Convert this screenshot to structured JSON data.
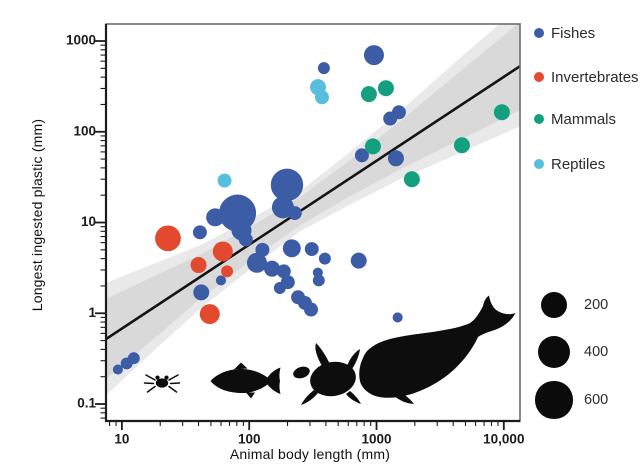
{
  "chart_data": {
    "type": "scatter",
    "title": "",
    "xlabel": "Animal body length (mm)",
    "ylabel": "Longest ingested plastic (mm)",
    "x_scale": "log",
    "y_scale": "log",
    "xlim": [
      7.5,
      13400
    ],
    "ylim": [
      0.065,
      1540
    ],
    "grid": false,
    "x_axis": {
      "tick_labels": [
        "10",
        "100",
        "1000",
        "10,000"
      ],
      "tick_values": [
        10,
        100,
        1000,
        10000
      ]
    },
    "y_axis": {
      "tick_labels": [
        "1000",
        "100",
        "10",
        "1",
        "0.1"
      ],
      "tick_values": [
        1000,
        100,
        10,
        1,
        0.1
      ]
    },
    "legend": [
      {
        "label": "Fishes",
        "color": "#3D5CA6"
      },
      {
        "label": "Invertebrates",
        "color": "#E2492F"
      },
      {
        "label": "Mammals",
        "color": "#14A07E"
      },
      {
        "label": "Reptiles",
        "color": "#58BEDE"
      }
    ],
    "legend_position": "right",
    "size_legend": {
      "labels": [
        "200",
        "400",
        "600"
      ],
      "values": [
        200,
        400,
        600
      ]
    },
    "series": [
      {
        "name": "Fishes",
        "color": "#3D5CA6",
        "points": [
          [
            9.3,
            0.24,
            12
          ],
          [
            10.9,
            0.28,
            20
          ],
          [
            12.4,
            0.32,
            20
          ],
          [
            41,
            7.8,
            32
          ],
          [
            54,
            11.4,
            68
          ],
          [
            81,
            12.7,
            600
          ],
          [
            87,
            8.2,
            94
          ],
          [
            94,
            6.5,
            32
          ],
          [
            184,
            14.7,
            125
          ],
          [
            198,
            26,
            400
          ],
          [
            228,
            12.7,
            32
          ],
          [
            42,
            1.7,
            48
          ],
          [
            60,
            2.3,
            12
          ],
          [
            115,
            3.6,
            94
          ],
          [
            127,
            5.0,
            32
          ],
          [
            151,
            3.1,
            48
          ],
          [
            174,
            1.9,
            20
          ],
          [
            187,
            2.9,
            32
          ],
          [
            201,
            2.2,
            32
          ],
          [
            216,
            5.2,
            68
          ],
          [
            242,
            1.5,
            32
          ],
          [
            274,
            1.3,
            32
          ],
          [
            306,
            1.1,
            32
          ],
          [
            310,
            5.1,
            32
          ],
          [
            346,
            2.8,
            12
          ],
          [
            352,
            2.3,
            20
          ],
          [
            393,
            4.0,
            20
          ],
          [
            725,
            3.8,
            48
          ],
          [
            386,
            503,
            20
          ],
          [
            955,
            700,
            94
          ],
          [
            768,
            55,
            32
          ],
          [
            1420,
            51,
            48
          ],
          [
            1280,
            140,
            32
          ],
          [
            1500,
            164,
            32
          ],
          [
            1466,
            0.9,
            12
          ]
        ]
      },
      {
        "name": "Invertebrates",
        "color": "#E2492F",
        "points": [
          [
            23,
            6.7,
            200
          ],
          [
            40,
            3.4,
            48
          ],
          [
            62,
            4.8,
            94
          ],
          [
            67,
            2.9,
            20
          ],
          [
            49,
            0.98,
            94
          ]
        ]
      },
      {
        "name": "Mammals",
        "color": "#14A07E",
        "points": [
          [
            871,
            260,
            48
          ],
          [
            1186,
            302,
            48
          ],
          [
            937,
            69,
            48
          ],
          [
            1897,
            30,
            48
          ],
          [
            4688,
            71,
            48
          ],
          [
            9660,
            164,
            48
          ]
        ]
      },
      {
        "name": "Reptiles",
        "color": "#58BEDE",
        "points": [
          [
            64,
            29,
            32
          ],
          [
            347,
            310,
            48
          ],
          [
            373,
            240,
            32
          ]
        ]
      }
    ],
    "regression": {
      "line": [
        [
          7.5,
          0.52
        ],
        [
          13400,
          528
        ]
      ],
      "line_color": "#141414",
      "ci_inner_color": "#d9d9d9",
      "ci_outer_color": "#e9e9e9",
      "ci_inner": [
        [
          7.5,
          0.19,
          1.44
        ],
        [
          20,
          0.6,
          2.76
        ],
        [
          41,
          1.43,
          4.4
        ],
        [
          100,
          3.7,
          8.8
        ],
        [
          250,
          9.3,
          19.0
        ],
        [
          600,
          18.9,
          47.0
        ],
        [
          1527,
          38.5,
          130
        ],
        [
          4000,
          75,
          400
        ],
        [
          13400,
          173,
          1616
        ]
      ],
      "ci_outer": [
        [
          7.5,
          0.125,
          2.16
        ],
        [
          20,
          0.45,
          3.74
        ],
        [
          41,
          1.11,
          5.6
        ],
        [
          100,
          3.0,
          10.8
        ],
        [
          250,
          8.0,
          22.0
        ],
        [
          600,
          15.4,
          58.0
        ],
        [
          1527,
          30,
          168
        ],
        [
          4000,
          54,
          557
        ],
        [
          13400,
          115,
          2424
        ]
      ]
    },
    "silhouettes": [
      "crab",
      "fish",
      "sea-turtle",
      "whale"
    ],
    "point_size_rule": "radius_px = 2.2 * cbrt(size_value)"
  }
}
